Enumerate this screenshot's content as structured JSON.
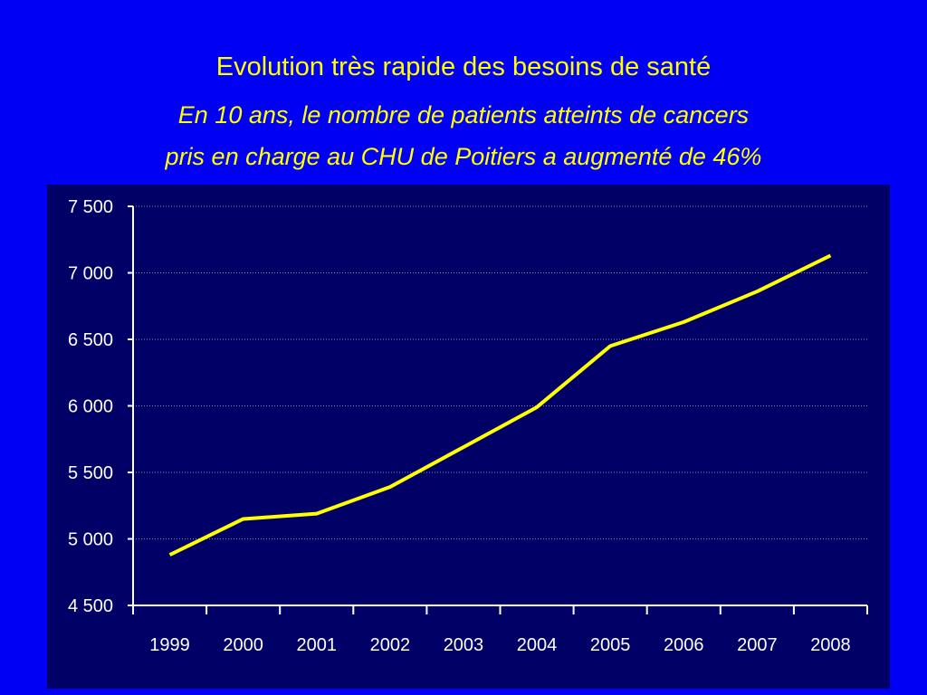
{
  "slide": {
    "title": "Evolution très rapide des besoins de santé",
    "subtitle_line1": "En 10 ans, le nombre de patients atteints de cancers",
    "subtitle_line2": "pris en charge au CHU de Poitiers a augmenté de 46%"
  },
  "colors": {
    "background": "#0000f5",
    "plot_area": "#000066",
    "line": "#ffff00",
    "title_text": "#ffff00",
    "axis": "#ffffff"
  },
  "chart_data": {
    "type": "line",
    "title": "",
    "xlabel": "",
    "ylabel": "",
    "x": [
      "1999",
      "2000",
      "2001",
      "2002",
      "2003",
      "2004",
      "2005",
      "2006",
      "2007",
      "2008"
    ],
    "series": [
      {
        "values": [
          4880,
          5150,
          5190,
          5390,
          5690,
          5990,
          6450,
          6630,
          6860,
          7130
        ]
      }
    ],
    "ylim": [
      4500,
      7500
    ],
    "yticks": [
      4500,
      5000,
      5500,
      6000,
      6500,
      7000,
      7500
    ],
    "ytick_labels": [
      "4 500",
      "5 000",
      "5 500",
      "6 000",
      "6 500",
      "7 000",
      "7 500"
    ],
    "grid": "horizontal-dotted",
    "legend": "none"
  }
}
